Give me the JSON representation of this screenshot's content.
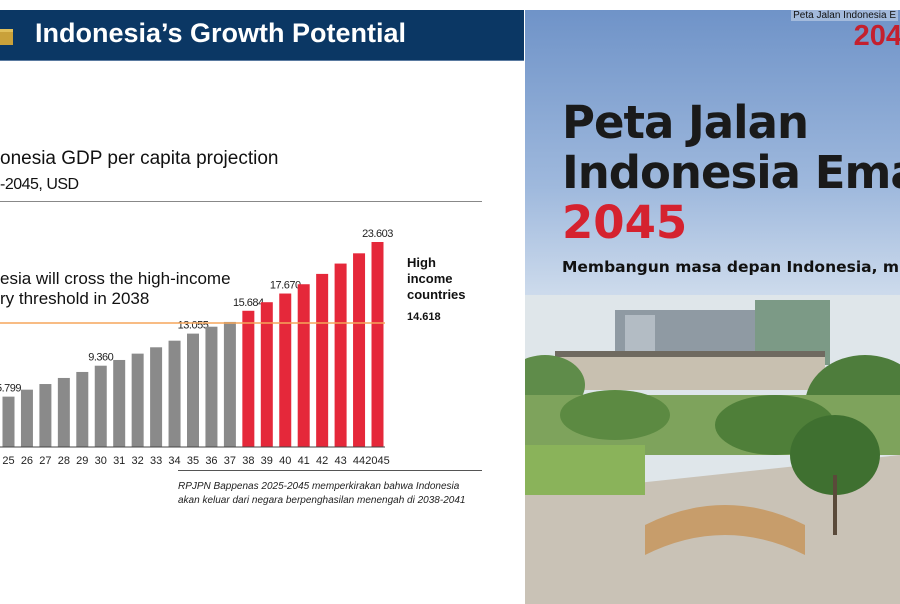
{
  "slide": {
    "title": "Indonesia’s Growth Potential",
    "logo_icon": "building-icon",
    "header_color": "#0b3764"
  },
  "chart_data": {
    "type": "bar",
    "title": "onesia GDP per capita projection",
    "subtitle": "-2045, USD",
    "categories": [
      "25",
      "26",
      "27",
      "28",
      "29",
      "30",
      "31",
      "32",
      "33",
      "34",
      "35",
      "36",
      "37",
      "38",
      "39",
      "40",
      "41",
      "42",
      "43",
      "44",
      "2045"
    ],
    "values": [
      5799,
      6600,
      7250,
      7950,
      8640,
      9360,
      10020,
      10750,
      11480,
      12240,
      13055,
      13850,
      14400,
      15684,
      16670,
      17670,
      18740,
      19930,
      21120,
      22300,
      23603
    ],
    "data_labels": {
      "0": "5.799",
      "5": "9.360",
      "10": "13.055",
      "13": "15.684",
      "15": "17.670",
      "20": "23.603"
    },
    "colors": {
      "before_2038": "#8a8a8a",
      "from_2038": "#e5283a",
      "threshold": "#f5a65b"
    },
    "threshold": {
      "value": 14618,
      "label": "14.618",
      "caption": [
        "High",
        "income",
        "countries"
      ]
    },
    "annotation": [
      "esia will cross the high-income",
      "ry threshold in 2038"
    ],
    "ylim": [
      0,
      24000
    ],
    "grid": false,
    "source": [
      "RPJPN Bappenas 2025-2045 memperkirakan bahwa Indonesia",
      "akan keluar dari negara berpenghasilan menengah di 2038-2041"
    ]
  },
  "book": {
    "logo_small": "Peta Jalan Indonesia E",
    "logo": "204",
    "title_line1": "Peta Jalan",
    "title_line2": "Indonesia Emas",
    "title_year": "2045",
    "tagline": "Membangun masa depan Indonesia, mulai har"
  }
}
